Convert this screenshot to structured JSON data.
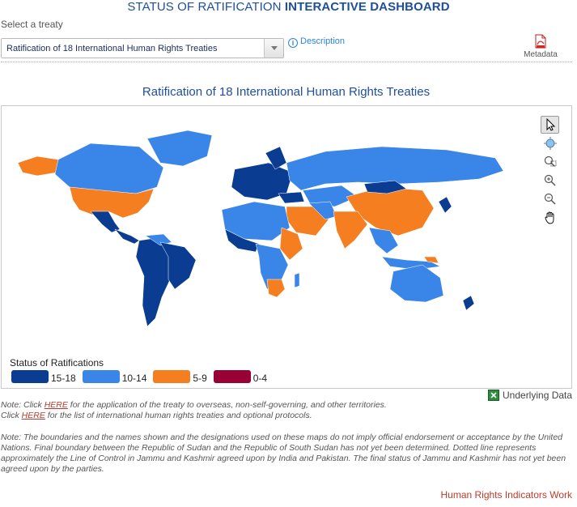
{
  "header": {
    "title_prefix": "STATUS OF RATIFICATION",
    "title_bold": "INTERACTIVE DASHBOARD"
  },
  "selector": {
    "label": "Select a treaty",
    "selected": "Ratification of 18 International Human Rights Treaties"
  },
  "description_link": "Description",
  "metadata_label": "Metadata",
  "map": {
    "title": "Ratification of 18 International Human Rights Treaties",
    "legend_title": "Status of Ratifications",
    "legend": [
      {
        "label": "15-18",
        "color": "#0a3d91"
      },
      {
        "label": "10-14",
        "color": "#3a86e8"
      },
      {
        "label": "5-9",
        "color": "#f57f20"
      },
      {
        "label": "0-4",
        "color": "#990033"
      }
    ],
    "tools": [
      "select-arrow-icon",
      "globe-icon",
      "zoom-box-icon",
      "zoom-in-icon",
      "zoom-out-icon",
      "pan-hand-icon"
    ]
  },
  "underlying_data": "Underlying Data",
  "notes": {
    "note1_prefix": "Note: Click",
    "note1_link": "HERE",
    "note1_suffix": "for the application of the treaty to overseas, non-self-governing, and other territories.",
    "note2_prefix": "Click",
    "note2_link": "HERE",
    "note2_suffix": "for the list of international human rights treaties and optional protocols.",
    "disclaimer": "Note: The boundaries and the names shown and the designations used on these maps do not imply official endorsement or acceptance by the United Nations. Final boundary between the Republic of Sudan and the Republic of South Sudan has not yet been determined. Dotted line represents approximately the Line of Control in Jammu and Kashmir agreed upon by India and Pakistan. The final status of Jammu and Kashmir has not yet been agreed upon by the parties."
  },
  "footer_link": "Human Rights Indicators Work"
}
